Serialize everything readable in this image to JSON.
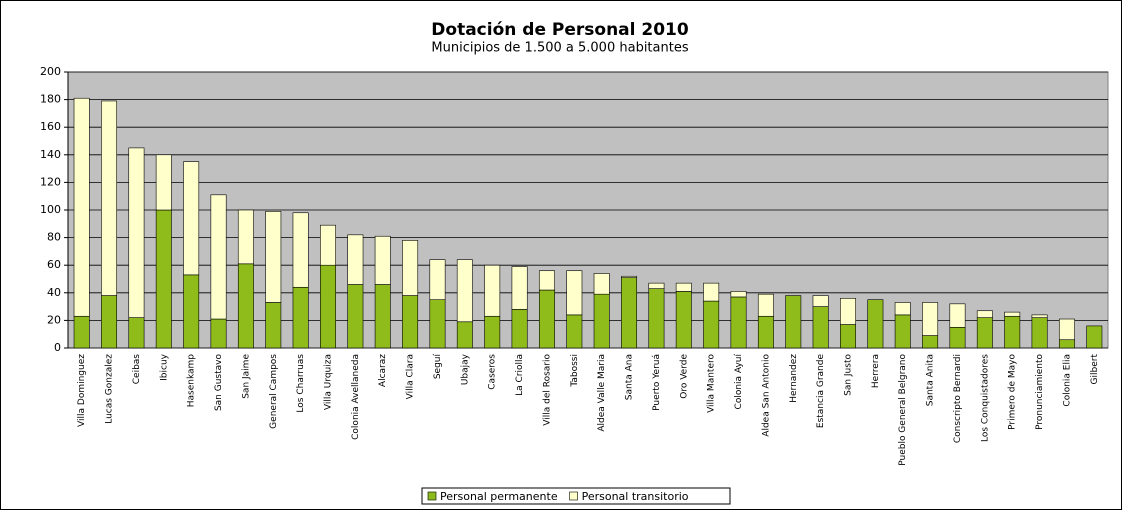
{
  "chart_data": {
    "type": "stacked_bar",
    "title": "Dotación de Personal 2010",
    "subtitle": "Municipios de 1.500 a 5.000 habitantes",
    "categories": [
      "Villa Dominguez",
      "Lucas Gonzalez",
      "Ceibas",
      "Ibicuy",
      "Hasenkamp",
      "San Gustavo",
      "San Jaime",
      "General Campos",
      "Los Charruas",
      "Villa Urquiza",
      "Colonia Avellaneda",
      "Alcaraz",
      "Villa Clara",
      "Seguí",
      "Ubajay",
      "Caseros",
      "La Criolla",
      "Villa del Rosario",
      "Tabossi",
      "Aldea Valle Maria",
      "Santa Ana",
      "Puerto Yeruá",
      "Oro Verde",
      "Villa Mantero",
      "Colonia Ayuí",
      "Aldea San Antonio",
      "Hernandez",
      "Estancia Grande",
      "San Justo",
      "Herrera",
      "Pueblo General Belgrano",
      "Santa Anita",
      "Conscripto Bernardi",
      "Los Conquistadores",
      "Primero de Mayo",
      "Pronunciamiento",
      "Colonia Elia",
      "Gilbert"
    ],
    "series": [
      {
        "name": "Personal permanente",
        "color": "#8fbc1b",
        "values": [
          23,
          38,
          22,
          100,
          53,
          21,
          61,
          33,
          44,
          60,
          46,
          46,
          38,
          35,
          19,
          23,
          28,
          42,
          24,
          39,
          51,
          43,
          41,
          34,
          37,
          23,
          38,
          30,
          17,
          35,
          24,
          9,
          15,
          22,
          23,
          22,
          6,
          16
        ]
      },
      {
        "name": "Personal transitorio",
        "color": "#ffffcc",
        "values": [
          158,
          141,
          123,
          40,
          82,
          90,
          39,
          66,
          54,
          29,
          36,
          35,
          40,
          29,
          45,
          37,
          31,
          14,
          32,
          15,
          1,
          4,
          6,
          13,
          4,
          16,
          0,
          8,
          19,
          0,
          9,
          24,
          17,
          5,
          3,
          2,
          15,
          0
        ]
      }
    ],
    "ylim": [
      0,
      200
    ],
    "yticks": [
      0,
      20,
      40,
      60,
      80,
      100,
      120,
      140,
      160,
      180,
      200
    ],
    "grid": true,
    "legend": "bottom",
    "plot_background": "#c0c0c0"
  }
}
